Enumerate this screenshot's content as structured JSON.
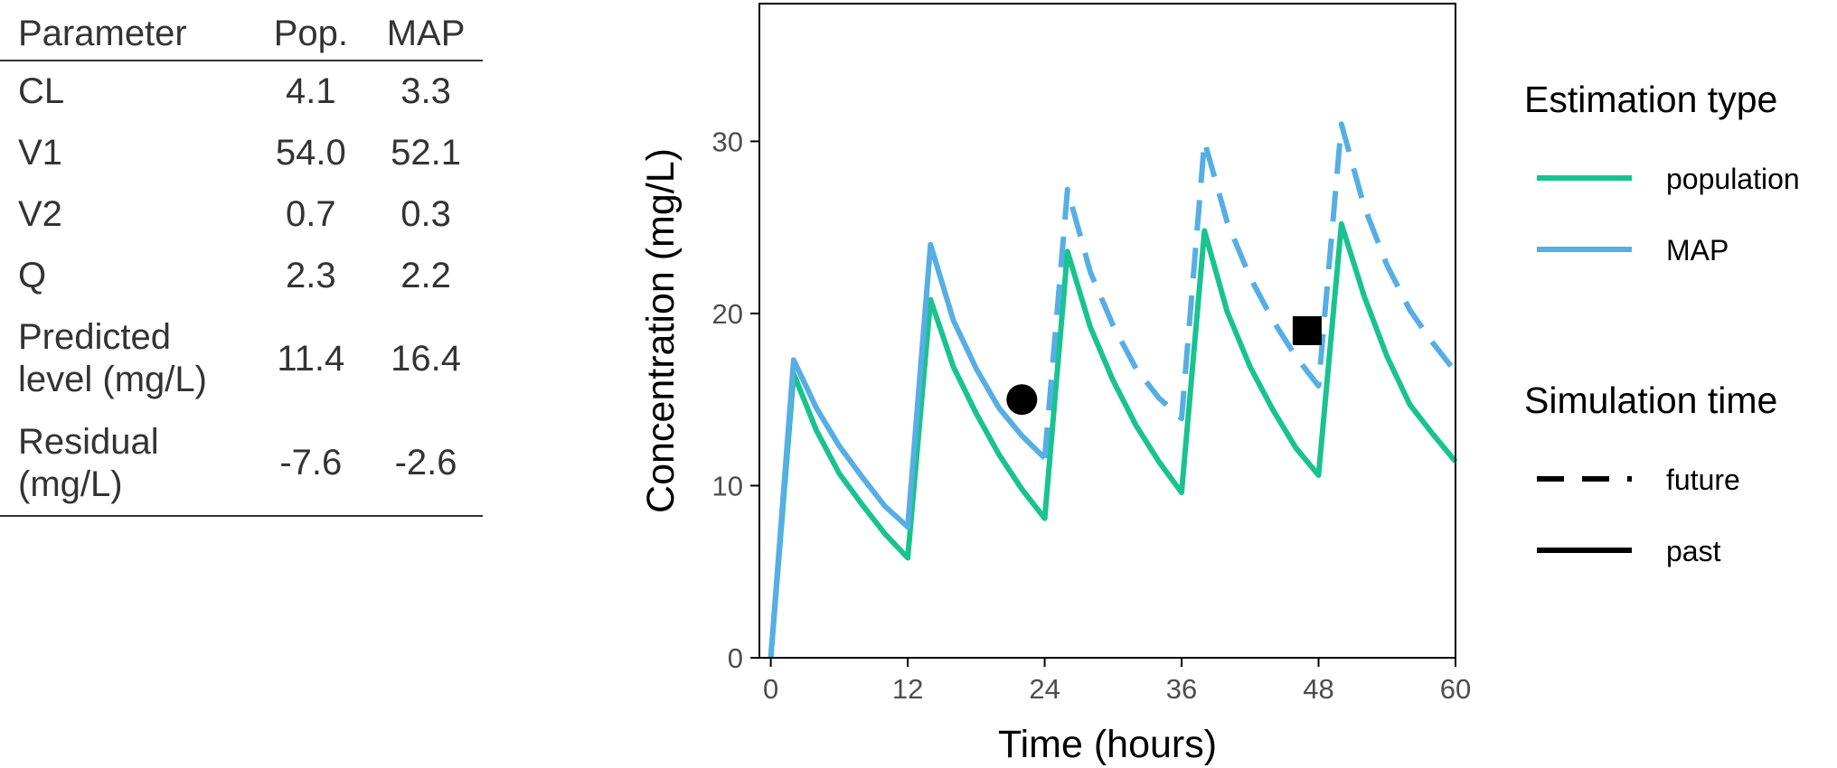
{
  "table": {
    "headers": [
      "Parameter",
      "Pop.",
      "MAP"
    ],
    "rows": [
      {
        "label": [
          "CL"
        ],
        "pop": "4.1",
        "map": "3.3"
      },
      {
        "label": [
          "V1"
        ],
        "pop": "54.0",
        "map": "52.1"
      },
      {
        "label": [
          "V2"
        ],
        "pop": "0.7",
        "map": "0.3"
      },
      {
        "label": [
          "Q"
        ],
        "pop": "2.3",
        "map": "2.2"
      },
      {
        "label": [
          "Predicted",
          "level (mg/L)"
        ],
        "pop": "11.4",
        "map": "16.4"
      },
      {
        "label": [
          "Residual",
          "(mg/L)"
        ],
        "pop": "-7.6",
        "map": "-2.6"
      }
    ]
  },
  "colors": {
    "population": "#19c38f",
    "map": "#56aee4",
    "points": "#000000",
    "axis": "#000000"
  },
  "chart_data": {
    "type": "line",
    "xlabel": "Time (hours)",
    "ylabel": "Concentration (mg/L)",
    "xlim": [
      -1,
      60
    ],
    "ylim": [
      0,
      38
    ],
    "xticks": [
      0,
      12,
      24,
      36,
      48,
      60
    ],
    "yticks": [
      0,
      10,
      20,
      30
    ],
    "grid": false,
    "legend": {
      "position": "right",
      "color_title": "Estimation type",
      "color_entries": [
        {
          "label": "population",
          "color": "#19c38f"
        },
        {
          "label": "MAP",
          "color": "#56aee4"
        }
      ],
      "linetype_title": "Simulation time",
      "linetype_entries": [
        {
          "label": "future",
          "linetype": "dashed"
        },
        {
          "label": "past",
          "linetype": "solid"
        }
      ]
    },
    "series": [
      {
        "estimation": "population",
        "segments": [
          {
            "time": "past",
            "x": [
              0,
              2,
              4,
              6,
              8,
              10,
              12,
              14,
              16,
              18,
              20,
              22,
              24,
              26,
              28,
              30,
              32,
              34,
              36,
              38,
              40,
              42,
              44,
              46,
              48,
              50,
              52,
              54,
              56,
              58,
              60
            ],
            "y": [
              0,
              16.5,
              13.2,
              10.7,
              8.9,
              7.2,
              5.8,
              20.8,
              16.9,
              14.2,
              11.8,
              9.8,
              8.1,
              23.6,
              19.2,
              16.1,
              13.5,
              11.4,
              9.6,
              24.8,
              20.1,
              16.9,
              14.4,
              12.2,
              10.6,
              25.2,
              21.0,
              17.5,
              14.7,
              13.0,
              11.4
            ]
          }
        ]
      },
      {
        "estimation": "MAP",
        "segments": [
          {
            "time": "past",
            "x": [
              0,
              2,
              4,
              6,
              8,
              10,
              12,
              14,
              16,
              18,
              20,
              22,
              24
            ],
            "y": [
              0,
              17.3,
              14.5,
              12.3,
              10.5,
              8.8,
              7.6,
              24.0,
              19.6,
              16.8,
              14.5,
              12.9,
              11.6
            ]
          },
          {
            "time": "future",
            "x": [
              24,
              26,
              28,
              30,
              32,
              34,
              36,
              38,
              40,
              42,
              44,
              46,
              48,
              50,
              52,
              54,
              56,
              58,
              60
            ],
            "y": [
              11.6,
              27.2,
              22.4,
              19.3,
              16.8,
              15.1,
              13.9,
              30.0,
              25.3,
              22.1,
              19.6,
              17.5,
              15.8,
              31.0,
              26.2,
              22.8,
              20.2,
              18.3,
              16.6
            ]
          }
        ]
      }
    ],
    "observations": [
      {
        "x": 22,
        "y": 15,
        "shape": "circle"
      },
      {
        "x": 47,
        "y": 19,
        "shape": "square"
      }
    ]
  }
}
